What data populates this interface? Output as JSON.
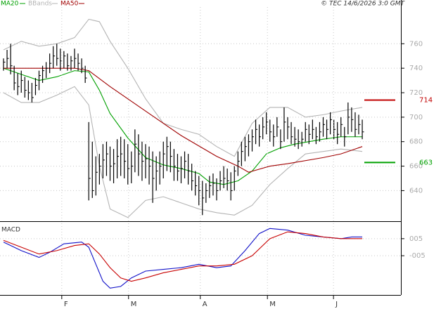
{
  "chart_data": [
    {
      "type": "ohlc",
      "source": "© TEC 14/6/2026 3:0 GMT",
      "ylim": [
        615,
        790
      ],
      "yticks": [
        640,
        660,
        680,
        700,
        720,
        740,
        760
      ],
      "grid": true,
      "high": [
        748,
        755,
        760,
        742,
        736,
        738,
        733,
        730,
        728,
        732,
        738,
        742,
        745,
        752,
        758,
        760,
        756,
        754,
        752,
        750,
        756,
        752,
        748,
        742,
        696,
        680,
        668,
        670,
        678,
        680,
        676,
        674,
        682,
        684,
        682,
        678,
        672,
        690,
        686,
        680,
        678,
        676,
        672,
        668,
        672,
        680,
        684,
        680,
        674,
        670,
        668,
        672,
        670,
        662,
        656,
        652,
        648,
        646,
        652,
        654,
        650,
        656,
        660,
        658,
        655,
        660,
        672,
        680,
        684,
        686,
        690,
        698,
        694,
        700,
        704,
        698,
        694,
        700,
        690,
        708,
        700,
        696,
        692,
        690,
        688,
        696,
        694,
        698,
        692,
        696,
        700,
        698,
        704,
        698,
        696,
        700,
        692,
        712,
        708,
        704,
        702,
        698
      ],
      "low": [
        738,
        740,
        735,
        722,
        718,
        720,
        716,
        714,
        712,
        718,
        722,
        728,
        732,
        736,
        740,
        742,
        738,
        740,
        738,
        738,
        740,
        738,
        736,
        728,
        632,
        634,
        636,
        645,
        650,
        652,
        648,
        646,
        650,
        652,
        650,
        645,
        646,
        655,
        652,
        648,
        650,
        645,
        630,
        640,
        645,
        650,
        656,
        655,
        648,
        648,
        646,
        650,
        645,
        640,
        636,
        628,
        620,
        630,
        634,
        636,
        632,
        640,
        642,
        640,
        632,
        640,
        652,
        660,
        664,
        668,
        672,
        678,
        676,
        682,
        686,
        680,
        676,
        684,
        674,
        680,
        682,
        678,
        676,
        674,
        676,
        680,
        678,
        682,
        678,
        680,
        684,
        682,
        686,
        682,
        678,
        684,
        676,
        686,
        688,
        684,
        686,
        682
      ],
      "close": [
        745,
        748,
        742,
        728,
        725,
        730,
        722,
        720,
        716,
        726,
        734,
        738,
        740,
        744,
        750,
        748,
        746,
        750,
        742,
        746,
        748,
        744,
        740,
        732,
        650,
        640,
        655,
        660,
        665,
        670,
        660,
        662,
        668,
        670,
        664,
        658,
        660,
        678,
        670,
        664,
        666,
        660,
        650,
        656,
        660,
        670,
        676,
        668,
        660,
        656,
        658,
        664,
        656,
        648,
        644,
        640,
        634,
        640,
        644,
        646,
        640,
        648,
        650,
        648,
        640,
        656,
        664,
        672,
        676,
        680,
        684,
        690,
        684,
        692,
        696,
        688,
        684,
        692,
        680,
        696,
        692,
        684,
        682,
        680,
        682,
        690,
        686,
        690,
        684,
        688,
        694,
        690,
        698,
        690,
        686,
        694,
        684,
        700,
        698,
        690,
        694,
        688
      ],
      "series": [
        {
          "name": "MA20",
          "color": "#00a000",
          "x": [
            0,
            5,
            10,
            15,
            20,
            24,
            27,
            30,
            35,
            40,
            45,
            50,
            55,
            58,
            62,
            66,
            70,
            74,
            78,
            82,
            86,
            90,
            95,
            101
          ],
          "values": [
            740,
            735,
            730,
            733,
            738,
            737,
            722,
            703,
            683,
            667,
            661,
            658,
            654,
            647,
            645,
            648,
            656,
            670,
            675,
            678,
            680,
            682,
            684,
            684
          ]
        },
        {
          "name": "BBands",
          "color": "#b4b4b4",
          "x": [
            0,
            5,
            10,
            15,
            20,
            24,
            27,
            30,
            35,
            40,
            45,
            50,
            55,
            60,
            65,
            70,
            75,
            80,
            85,
            90,
            95,
            101
          ],
          "upper": [
            755,
            762,
            758,
            760,
            765,
            780,
            778,
            762,
            740,
            715,
            695,
            690,
            686,
            676,
            668,
            695,
            708,
            708,
            700,
            702,
            705,
            708
          ],
          "lower": [
            720,
            712,
            712,
            718,
            725,
            710,
            660,
            625,
            618,
            632,
            635,
            630,
            625,
            622,
            620,
            628,
            645,
            658,
            670,
            672,
            674,
            672
          ]
        },
        {
          "name": "MA50",
          "color": "#a00000",
          "x": [
            0,
            10,
            20,
            24,
            30,
            40,
            50,
            60,
            66,
            69,
            75,
            80,
            90,
            95,
            101
          ],
          "values": [
            740,
            740,
            740,
            738,
            725,
            705,
            685,
            668,
            660,
            655,
            660,
            662,
            667,
            670,
            676
          ]
        }
      ],
      "levels": [
        {
          "value": 714,
          "color": "#c00000"
        },
        {
          "value": 663,
          "color": "#00a000"
        }
      ]
    },
    {
      "type": "macd",
      "title": "MACD",
      "ylim": [
        -0.28,
        0.14
      ],
      "yticks": [
        {
          "value": 0.05,
          "label": "005"
        },
        {
          "value": -0.05,
          "label": "-005"
        }
      ],
      "xticks": [
        {
          "value": 16.4,
          "label": "F"
        },
        {
          "value": 35.2,
          "label": "M"
        },
        {
          "value": 55.4,
          "label": "A"
        },
        {
          "value": 74.3,
          "label": "M"
        },
        {
          "value": 92.9,
          "label": "J"
        }
      ],
      "lines": [
        {
          "color": "#1010c8",
          "x": [
            0,
            5,
            10,
            13,
            17,
            22,
            24,
            26,
            28,
            30,
            33,
            36,
            40,
            45,
            50,
            55,
            60,
            64,
            68,
            72,
            75,
            80,
            85,
            90,
            95,
            98,
            101
          ],
          "values": [
            0.03,
            -0.02,
            -0.06,
            -0.03,
            0.02,
            0.03,
            0.0,
            -0.1,
            -0.2,
            -0.24,
            -0.23,
            -0.18,
            -0.14,
            -0.13,
            -0.12,
            -0.1,
            -0.12,
            -0.11,
            -0.02,
            0.08,
            0.11,
            0.1,
            0.07,
            0.06,
            0.05,
            0.06,
            0.06
          ]
        },
        {
          "color": "#c80000",
          "x": [
            0,
            5,
            10,
            15,
            20,
            24,
            27,
            30,
            33,
            36,
            40,
            45,
            50,
            55,
            60,
            65,
            70,
            75,
            80,
            85,
            90,
            95,
            101
          ],
          "values": [
            0.04,
            0.0,
            -0.04,
            -0.02,
            0.01,
            0.02,
            -0.04,
            -0.12,
            -0.18,
            -0.2,
            -0.18,
            -0.15,
            -0.13,
            -0.11,
            -0.11,
            -0.1,
            -0.05,
            0.05,
            0.09,
            0.08,
            0.06,
            0.05,
            0.05
          ]
        }
      ]
    }
  ]
}
